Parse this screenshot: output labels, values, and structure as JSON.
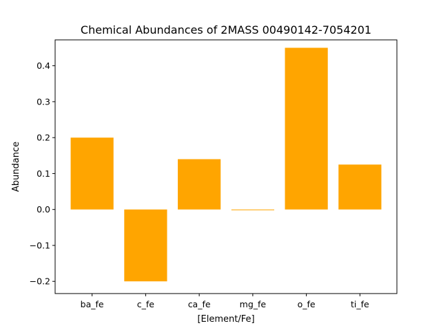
{
  "chart_data": {
    "type": "bar",
    "title": "Chemical Abundances of 2MASS 00490142-7054201",
    "xlabel": "[Element/Fe]",
    "ylabel": "Abundance",
    "categories": [
      "ba_fe",
      "c_fe",
      "ca_fe",
      "mg_fe",
      "o_fe",
      "ti_fe"
    ],
    "values": [
      0.2,
      -0.2,
      0.14,
      -0.002,
      0.45,
      0.125
    ],
    "ylim": [
      -0.234,
      0.472
    ],
    "yticks": [
      -0.2,
      -0.1,
      0.0,
      0.1,
      0.2,
      0.3,
      0.4
    ],
    "ytick_labels": [
      "−0.2",
      "−0.1",
      "0.0",
      "0.1",
      "0.2",
      "0.3",
      "0.4"
    ],
    "grid": false,
    "bar_color": "#ffa500"
  }
}
